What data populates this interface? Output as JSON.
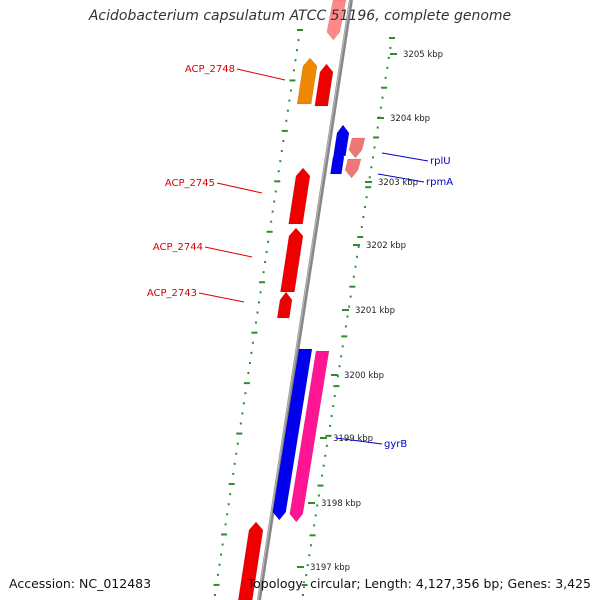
{
  "title": "Acidobacterium capsulatum ATCC 51196, complete genome",
  "footer": {
    "accession": "Accession: NC_012483",
    "summary": "Topology: circular; Length: 4,127,356 bp; Genes: 3,425"
  },
  "colors": {
    "backbone": "#888888",
    "ticks": "#2e8b2e",
    "tick_label": "#222222",
    "forward_label": "#dd0000",
    "reverse_label": "#0000cc"
  },
  "ticks": [
    {
      "label": "3205 kbp"
    },
    {
      "label": "3204 kbp"
    },
    {
      "label": "3203 kbp"
    },
    {
      "label": "3202 kbp"
    },
    {
      "label": "3201 kbp"
    },
    {
      "label": "3200 kbp"
    },
    {
      "label": "3199 kbp"
    },
    {
      "label": "3198 kbp"
    },
    {
      "label": "3197 kbp"
    }
  ],
  "features": [
    {
      "name": "ACP_2748",
      "color": "#ee8800"
    },
    {
      "name": "",
      "color": "#ee0000"
    },
    {
      "name": "",
      "color": "#ff8888"
    },
    {
      "name": "ACP_2745",
      "color": "#ee0000"
    },
    {
      "name": "ACP_2744",
      "color": "#ee0000"
    },
    {
      "name": "ACP_2743",
      "color": "#ee0000"
    },
    {
      "name": "",
      "color": "#ee0000"
    },
    {
      "name": "",
      "color": "#0000ee"
    },
    {
      "name": "",
      "color": "#ff1493"
    },
    {
      "name": "rplU",
      "color": "#0000ee"
    },
    {
      "name": "",
      "color": "#ee7777"
    },
    {
      "name": "rpmA",
      "color": "#0000ee"
    },
    {
      "name": "gyrB",
      "color": "#0000ee"
    }
  ]
}
